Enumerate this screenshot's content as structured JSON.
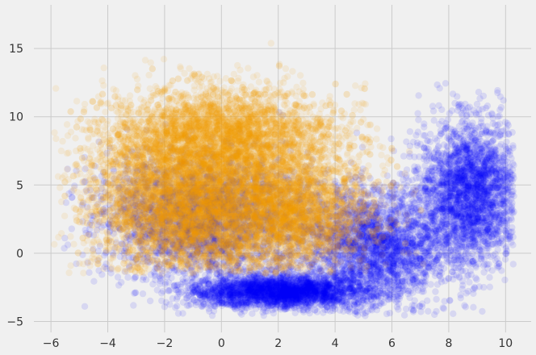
{
  "chart_data": {
    "type": "scatter",
    "title": "",
    "xlabel": "",
    "ylabel": "",
    "xlim": [
      -6.6,
      10.9
    ],
    "ylim": [
      -5.8,
      18.2
    ],
    "x_ticks": [
      -6,
      -4,
      -2,
      0,
      2,
      4,
      6,
      8,
      10
    ],
    "y_ticks": [
      -5,
      0,
      5,
      10,
      15
    ],
    "x_tick_labels": [
      "−6",
      "−4",
      "−2",
      "0",
      "2",
      "4",
      "6",
      "8",
      "10"
    ],
    "y_tick_labels": [
      "−5",
      "0",
      "5",
      "10",
      "15"
    ],
    "grid": true,
    "legend": "none",
    "marker_alpha": 0.1,
    "background_color": "#f0f0f0",
    "grid_color": "#cbcbcb",
    "series": [
      {
        "color": "#0000ff",
        "point_count": 10000,
        "core_regions": [
          {
            "x_center": -0.5,
            "y_center": 2.5,
            "x_spread": 1.9,
            "y_spread": 2.3
          },
          {
            "x_center": 2.0,
            "y_center": -2.8,
            "x_spread": 1.5,
            "y_spread": 0.6
          },
          {
            "x_center": 5.5,
            "y_center": 0.5,
            "x_spread": 1.3,
            "y_spread": 2.2
          },
          {
            "x_center": 8.8,
            "y_center": 4.5,
            "x_spread": 0.9,
            "y_spread": 2.5
          }
        ],
        "extremes": {
          "x_min": -5.6,
          "x_max": 10.3,
          "y_min": -4.6,
          "y_max": 15.5
        }
      },
      {
        "color": "#f5a000",
        "point_count": 12000,
        "core_regions": [
          {
            "x_center": -1.5,
            "y_center": 3.5,
            "x_spread": 1.6,
            "y_spread": 2.5
          },
          {
            "x_center": 2.0,
            "y_center": 3.0,
            "x_spread": 1.6,
            "y_spread": 2.2
          },
          {
            "x_center": 0.0,
            "y_center": 8.5,
            "x_spread": 2.0,
            "y_spread": 1.8
          }
        ],
        "extremes": {
          "x_min": -5.9,
          "x_max": 7.5,
          "y_min": -1.5,
          "y_max": 17.0
        }
      }
    ]
  }
}
